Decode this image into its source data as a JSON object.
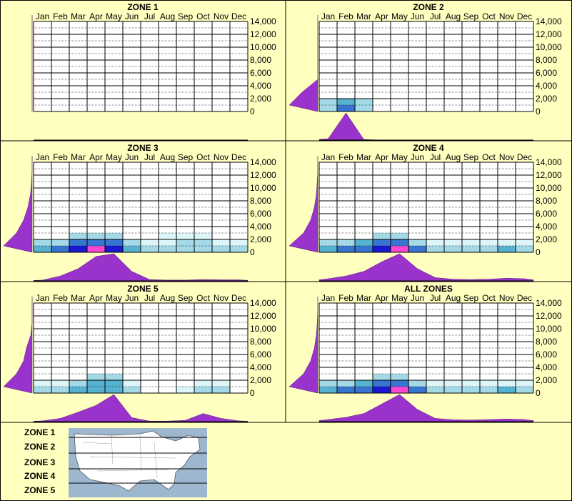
{
  "months": [
    "Jan",
    "Feb",
    "Mar",
    "Apr",
    "May",
    "Jun",
    "Jul",
    "Aug",
    "Sep",
    "Oct",
    "Nov",
    "Dec"
  ],
  "y_ticks": [
    "14,000",
    "12,000",
    "10,000",
    "8,000",
    "6,000",
    "4,000",
    "2,000",
    "0"
  ],
  "colors": {
    "background": "#ffffc0",
    "plot_bg": "#ffffff",
    "profile_fill": "#9933cc",
    "heat_low": "#d8f4f8",
    "heat_mid": "#44aacc",
    "heat_high": "#0000cc",
    "heat_peak": "#ff33cc"
  },
  "chart_data": [
    {
      "type": "heatmap",
      "title": "ZONE 1",
      "x_categories": [
        "Jan",
        "Feb",
        "Mar",
        "Apr",
        "May",
        "Jun",
        "Jul",
        "Aug",
        "Sep",
        "Oct",
        "Nov",
        "Dec"
      ],
      "ylim": [
        0,
        14000
      ],
      "y_step": 2000,
      "seasonal_profile": [
        0,
        0,
        0,
        0,
        0,
        0,
        0,
        0,
        0,
        0,
        0,
        0
      ],
      "elevation_profile": [
        0,
        0,
        0,
        0,
        0,
        0,
        0,
        0
      ],
      "cells": []
    },
    {
      "type": "heatmap",
      "title": "ZONE 2",
      "x_categories": [
        "Jan",
        "Feb",
        "Mar",
        "Apr",
        "May",
        "Jun",
        "Jul",
        "Aug",
        "Sep",
        "Oct",
        "Nov",
        "Dec"
      ],
      "ylim": [
        0,
        14000
      ],
      "y_step": 2000,
      "seasonal_profile": [
        0.05,
        1.0,
        0.02,
        0,
        0,
        0,
        0,
        0,
        0,
        0,
        0,
        0
      ],
      "elevation_profile": [
        1.0,
        0.55,
        0,
        0,
        0,
        0,
        0,
        0
      ],
      "cells": [
        [
          0,
          0,
          0.3
        ],
        [
          1,
          0,
          0.6
        ],
        [
          2,
          0,
          0.2
        ],
        [
          0,
          1,
          0.25
        ],
        [
          1,
          1,
          0.45
        ],
        [
          2,
          1,
          0.2
        ]
      ]
    },
    {
      "type": "heatmap",
      "title": "ZONE 3",
      "x_categories": [
        "Jan",
        "Feb",
        "Mar",
        "Apr",
        "May",
        "Jun",
        "Jul",
        "Aug",
        "Sep",
        "Oct",
        "Nov",
        "Dec"
      ],
      "ylim": [
        0,
        14000
      ],
      "y_step": 2000,
      "seasonal_profile": [
        0.03,
        0.18,
        0.45,
        0.9,
        1.0,
        0.35,
        0.05,
        0.03,
        0.03,
        0.05,
        0.04,
        0.04
      ],
      "elevation_profile": [
        1.0,
        0.55,
        0.3,
        0.15,
        0.06,
        0.02,
        0,
        0
      ],
      "cells": [
        [
          0,
          0,
          0.4
        ],
        [
          1,
          0,
          0.5
        ],
        [
          2,
          0,
          0.75
        ],
        [
          3,
          0,
          1.0
        ],
        [
          4,
          0,
          0.8
        ],
        [
          5,
          0,
          0.4
        ],
        [
          6,
          0,
          0.2
        ],
        [
          7,
          0,
          0.2
        ],
        [
          8,
          0,
          0.2
        ],
        [
          9,
          0,
          0.3
        ],
        [
          10,
          0,
          0.2
        ],
        [
          11,
          0,
          0.2
        ],
        [
          0,
          1,
          0.25
        ],
        [
          1,
          1,
          0.3
        ],
        [
          2,
          1,
          0.5
        ],
        [
          3,
          1,
          0.6
        ],
        [
          4,
          1,
          0.5
        ],
        [
          5,
          1,
          0.25
        ],
        [
          6,
          1,
          0.1
        ],
        [
          7,
          1,
          0.15
        ],
        [
          8,
          1,
          0.2
        ],
        [
          9,
          1,
          0.2
        ],
        [
          10,
          1,
          0.15
        ],
        [
          11,
          1,
          0.1
        ],
        [
          2,
          2,
          0.2
        ],
        [
          3,
          2,
          0.3
        ],
        [
          4,
          2,
          0.25
        ],
        [
          7,
          2,
          0.1
        ],
        [
          8,
          2,
          0.15
        ],
        [
          9,
          2,
          0.1
        ]
      ]
    },
    {
      "type": "heatmap",
      "title": "ZONE 4",
      "x_categories": [
        "Jan",
        "Feb",
        "Mar",
        "Apr",
        "May",
        "Jun",
        "Jul",
        "Aug",
        "Sep",
        "Oct",
        "Nov",
        "Dec"
      ],
      "ylim": [
        0,
        14000
      ],
      "y_step": 2000,
      "seasonal_profile": [
        0.08,
        0.18,
        0.35,
        0.7,
        1.0,
        0.45,
        0.12,
        0.06,
        0.05,
        0.06,
        0.1,
        0.08
      ],
      "elevation_profile": [
        1.0,
        0.5,
        0.25,
        0.12,
        0.05,
        0.02,
        0,
        0
      ],
      "cells": [
        [
          0,
          0,
          0.45
        ],
        [
          1,
          0,
          0.55
        ],
        [
          2,
          0,
          0.7
        ],
        [
          3,
          0,
          0.85
        ],
        [
          4,
          0,
          1.0
        ],
        [
          5,
          0,
          0.5
        ],
        [
          6,
          0,
          0.25
        ],
        [
          7,
          0,
          0.25
        ],
        [
          8,
          0,
          0.2
        ],
        [
          9,
          0,
          0.3
        ],
        [
          10,
          0,
          0.35
        ],
        [
          11,
          0,
          0.3
        ],
        [
          0,
          1,
          0.25
        ],
        [
          1,
          1,
          0.3
        ],
        [
          2,
          1,
          0.45
        ],
        [
          3,
          1,
          0.55
        ],
        [
          4,
          1,
          0.55
        ],
        [
          5,
          1,
          0.3
        ],
        [
          6,
          1,
          0.15
        ],
        [
          7,
          1,
          0.1
        ],
        [
          8,
          1,
          0.1
        ],
        [
          9,
          1,
          0.15
        ],
        [
          10,
          1,
          0.15
        ],
        [
          11,
          1,
          0.1
        ],
        [
          3,
          2,
          0.25
        ],
        [
          4,
          2,
          0.25
        ]
      ]
    },
    {
      "type": "heatmap",
      "title": "ZONE 5",
      "x_categories": [
        "Jan",
        "Feb",
        "Mar",
        "Apr",
        "May",
        "Jun",
        "Jul",
        "Aug",
        "Sep",
        "Oct",
        "Nov",
        "Dec"
      ],
      "ylim": [
        0,
        14000
      ],
      "y_step": 2000,
      "seasonal_profile": [
        0.03,
        0.12,
        0.35,
        0.6,
        1.0,
        0.15,
        0.02,
        0.02,
        0.05,
        0.3,
        0.12,
        0.03
      ],
      "elevation_profile": [
        1.0,
        0.55,
        0.3,
        0.2,
        0.05,
        0,
        0,
        0
      ],
      "cells": [
        [
          0,
          0,
          0.25
        ],
        [
          1,
          0,
          0.3
        ],
        [
          2,
          0,
          0.35
        ],
        [
          3,
          0,
          0.45
        ],
        [
          4,
          0,
          0.45
        ],
        [
          5,
          0,
          0.2
        ],
        [
          8,
          0,
          0.15
        ],
        [
          9,
          0,
          0.25
        ],
        [
          10,
          0,
          0.2
        ],
        [
          0,
          1,
          0.15
        ],
        [
          1,
          1,
          0.15
        ],
        [
          2,
          1,
          0.25
        ],
        [
          3,
          1,
          0.35
        ],
        [
          4,
          1,
          0.35
        ],
        [
          5,
          1,
          0.15
        ],
        [
          9,
          1,
          0.15
        ],
        [
          10,
          1,
          0.15
        ],
        [
          3,
          2,
          0.2
        ],
        [
          4,
          2,
          0.2
        ]
      ]
    },
    {
      "type": "heatmap",
      "title": "ALL ZONES",
      "x_categories": [
        "Jan",
        "Feb",
        "Mar",
        "Apr",
        "May",
        "Jun",
        "Jul",
        "Aug",
        "Sep",
        "Oct",
        "Nov",
        "Dec"
      ],
      "ylim": [
        0,
        14000
      ],
      "y_step": 2000,
      "seasonal_profile": [
        0.08,
        0.16,
        0.3,
        0.65,
        1.0,
        0.45,
        0.12,
        0.07,
        0.06,
        0.08,
        0.1,
        0.08
      ],
      "elevation_profile": [
        1.0,
        0.5,
        0.25,
        0.12,
        0.05,
        0.02,
        0,
        0
      ],
      "cells": [
        [
          0,
          0,
          0.45
        ],
        [
          1,
          0,
          0.55
        ],
        [
          2,
          0,
          0.7
        ],
        [
          3,
          0,
          0.85
        ],
        [
          4,
          0,
          1.0
        ],
        [
          5,
          0,
          0.55
        ],
        [
          6,
          0,
          0.3
        ],
        [
          7,
          0,
          0.25
        ],
        [
          8,
          0,
          0.25
        ],
        [
          9,
          0,
          0.3
        ],
        [
          10,
          0,
          0.35
        ],
        [
          11,
          0,
          0.3
        ],
        [
          0,
          1,
          0.25
        ],
        [
          1,
          1,
          0.3
        ],
        [
          2,
          1,
          0.45
        ],
        [
          3,
          1,
          0.55
        ],
        [
          4,
          1,
          0.55
        ],
        [
          5,
          1,
          0.3
        ],
        [
          6,
          1,
          0.15
        ],
        [
          7,
          1,
          0.1
        ],
        [
          8,
          1,
          0.1
        ],
        [
          9,
          1,
          0.15
        ],
        [
          10,
          1,
          0.15
        ],
        [
          11,
          1,
          0.1
        ],
        [
          3,
          2,
          0.25
        ],
        [
          4,
          2,
          0.25
        ]
      ]
    }
  ],
  "legend": {
    "zones": [
      "ZONE 1",
      "ZONE 2",
      "ZONE 3",
      "ZONE 4",
      "ZONE 5"
    ]
  }
}
